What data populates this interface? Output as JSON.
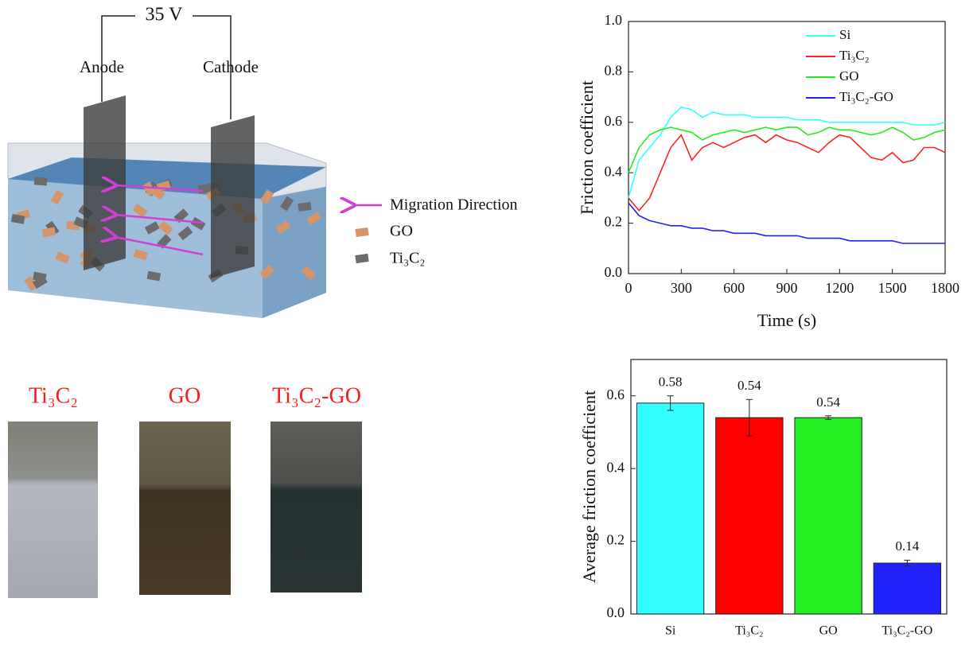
{
  "diagram": {
    "voltage": "35 V",
    "anode": "Anode",
    "cathode": "Cathode",
    "legend": [
      "Migration Direction",
      "GO",
      "Ti₃C₂"
    ]
  },
  "photos": {
    "labels": [
      "Ti₃C₂",
      "GO",
      "Ti₃C₂-GO"
    ]
  },
  "chart_data": [
    {
      "type": "line",
      "x_label": "Time (s)",
      "y_label": "Friction coefficient",
      "x": [
        0,
        60,
        120,
        180,
        240,
        300,
        360,
        420,
        480,
        540,
        600,
        660,
        720,
        780,
        840,
        900,
        960,
        1020,
        1080,
        1140,
        1200,
        1260,
        1320,
        1380,
        1440,
        1500,
        1560,
        1620,
        1680,
        1740,
        1800
      ],
      "xlim": [
        0,
        1800
      ],
      "xticks": [
        0,
        300,
        600,
        900,
        1200,
        1500,
        1800
      ],
      "ylim": [
        0,
        1
      ],
      "yticks": [
        {
          "value": 0,
          "label": "0.0"
        },
        0.2,
        0.4,
        0.6,
        0.8,
        {
          "value": 1,
          "label": "1.0"
        }
      ],
      "series": [
        {
          "name": "Si",
          "color": "#33ffff",
          "values": [
            0.3,
            0.45,
            0.5,
            0.55,
            0.62,
            0.66,
            0.65,
            0.62,
            0.64,
            0.63,
            0.63,
            0.63,
            0.62,
            0.62,
            0.62,
            0.62,
            0.61,
            0.61,
            0.61,
            0.6,
            0.6,
            0.6,
            0.6,
            0.6,
            0.6,
            0.6,
            0.6,
            0.59,
            0.59,
            0.59,
            0.6
          ]
        },
        {
          "name": "Ti₃C₂",
          "color": "#ff2222",
          "values": [
            0.3,
            0.25,
            0.3,
            0.4,
            0.5,
            0.55,
            0.45,
            0.5,
            0.52,
            0.5,
            0.52,
            0.54,
            0.55,
            0.52,
            0.55,
            0.53,
            0.52,
            0.5,
            0.48,
            0.52,
            0.55,
            0.54,
            0.5,
            0.46,
            0.45,
            0.48,
            0.44,
            0.45,
            0.5,
            0.5,
            0.48
          ]
        },
        {
          "name": "GO",
          "color": "#22ee22",
          "values": [
            0.4,
            0.5,
            0.55,
            0.57,
            0.58,
            0.57,
            0.56,
            0.53,
            0.55,
            0.56,
            0.57,
            0.56,
            0.57,
            0.58,
            0.57,
            0.58,
            0.58,
            0.55,
            0.56,
            0.58,
            0.57,
            0.57,
            0.56,
            0.55,
            0.56,
            0.58,
            0.56,
            0.53,
            0.54,
            0.56,
            0.57
          ]
        },
        {
          "name": "Ti₃C₂-GO",
          "color": "#2222ff",
          "values": [
            0.28,
            0.23,
            0.21,
            0.2,
            0.19,
            0.19,
            0.18,
            0.18,
            0.17,
            0.17,
            0.16,
            0.16,
            0.16,
            0.15,
            0.15,
            0.15,
            0.15,
            0.14,
            0.14,
            0.14,
            0.14,
            0.13,
            0.13,
            0.13,
            0.13,
            0.13,
            0.12,
            0.12,
            0.12,
            0.12,
            0.12
          ]
        }
      ]
    },
    {
      "type": "bar",
      "y_label": "Average friction coefficient",
      "categories": [
        "Si",
        "Ti₃C₂",
        "GO",
        "Ti₃C₂-GO"
      ],
      "values": [
        0.58,
        0.54,
        0.54,
        0.14
      ],
      "errors": [
        0.02,
        0.05,
        0.005,
        0.008
      ],
      "colors": [
        "#33ffff",
        "#ff0000",
        "#22ee22",
        "#2222ff"
      ],
      "ylim": [
        0,
        0.7
      ],
      "yticks": [
        {
          "value": 0,
          "label": "0.0"
        },
        0.2,
        0.4,
        0.6
      ]
    }
  ]
}
